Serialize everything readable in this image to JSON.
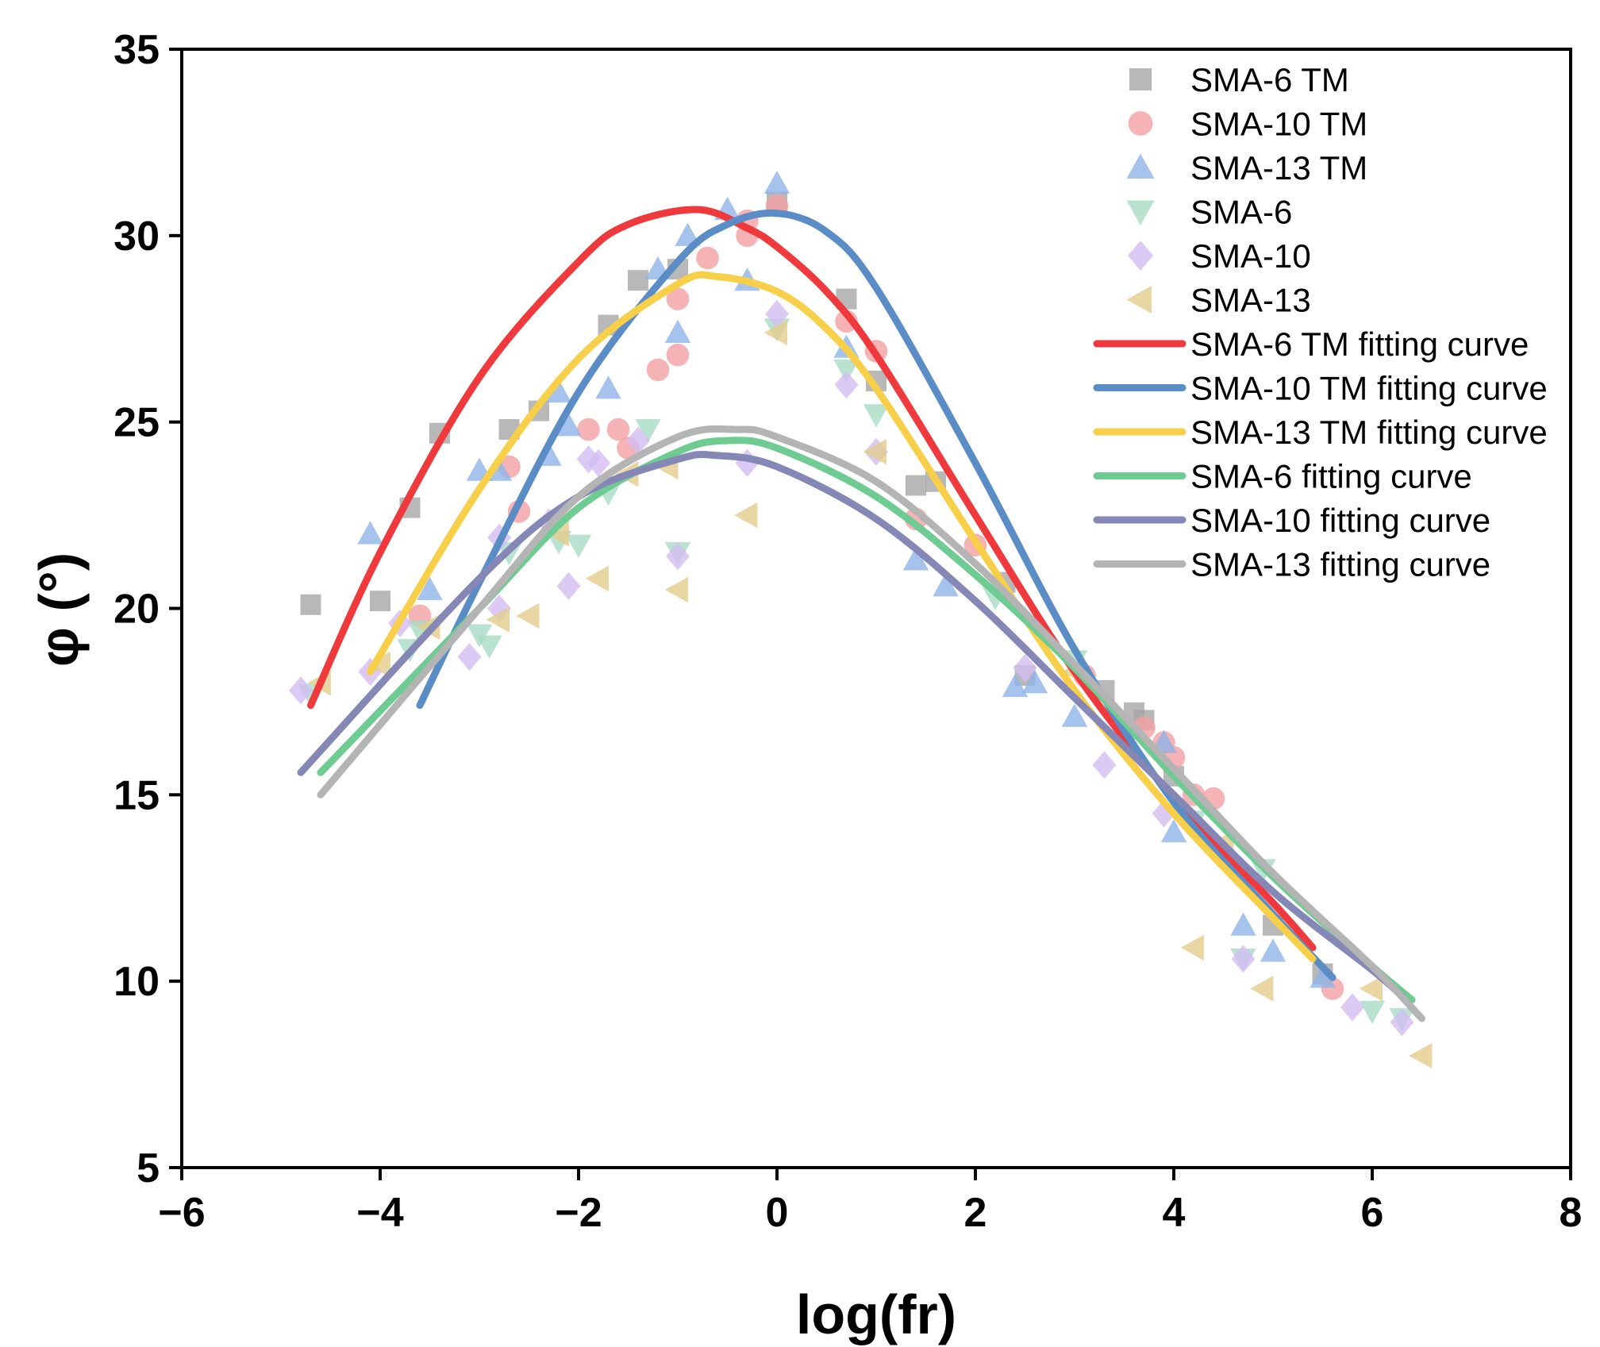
{
  "chart_data": {
    "type": "scatter",
    "title": "",
    "xlabel": "log(fr)",
    "ylabel": "φ (°)",
    "xlim": [
      -6,
      8
    ],
    "ylim": [
      5,
      35
    ],
    "xticks": [
      -6,
      -4,
      -2,
      0,
      2,
      4,
      6,
      8
    ],
    "yticks": [
      5,
      10,
      15,
      20,
      25,
      30,
      35
    ],
    "xtick_labels": [
      "−6",
      "−4",
      "−2",
      "0",
      "2",
      "4",
      "6",
      "8"
    ],
    "ytick_labels": [
      "5",
      "10",
      "15",
      "20",
      "25",
      "30",
      "35"
    ],
    "grid": false,
    "legend_position": "top-right",
    "series": [
      {
        "name": "SMA-6 TM",
        "marker": "square",
        "color": "#a6a6a6",
        "points": [
          [
            -4.7,
            20.1
          ],
          [
            -4.0,
            20.2
          ],
          [
            -3.7,
            22.7
          ],
          [
            -3.4,
            24.7
          ],
          [
            -2.7,
            24.8
          ],
          [
            -2.4,
            25.3
          ],
          [
            -1.7,
            27.6
          ],
          [
            -1.4,
            28.8
          ],
          [
            -1.0,
            29.1
          ],
          [
            0.0,
            30.9
          ],
          [
            0.7,
            28.3
          ],
          [
            1.0,
            26.1
          ],
          [
            1.4,
            23.3
          ],
          [
            1.6,
            23.4
          ],
          [
            2.3,
            20.7
          ],
          [
            2.5,
            18.2
          ],
          [
            3.3,
            17.8
          ],
          [
            3.6,
            17.2
          ],
          [
            3.7,
            17.0
          ],
          [
            4.0,
            15.5
          ],
          [
            5.0,
            11.5
          ],
          [
            5.5,
            10.2
          ]
        ]
      },
      {
        "name": "SMA-10 TM",
        "marker": "circle",
        "color": "#f4a0a4",
        "points": [
          [
            -3.6,
            19.8
          ],
          [
            -2.7,
            23.8
          ],
          [
            -2.6,
            22.6
          ],
          [
            -1.9,
            24.8
          ],
          [
            -1.6,
            24.8
          ],
          [
            -1.5,
            24.3
          ],
          [
            -1.2,
            26.4
          ],
          [
            -1.0,
            26.8
          ],
          [
            -1.0,
            28.3
          ],
          [
            -0.7,
            29.4
          ],
          [
            -0.3,
            30.0
          ],
          [
            -0.3,
            30.4
          ],
          [
            0.0,
            30.8
          ],
          [
            0.7,
            27.7
          ],
          [
            1.0,
            26.9
          ],
          [
            1.4,
            22.4
          ],
          [
            2.0,
            21.7
          ],
          [
            3.1,
            18.2
          ],
          [
            3.7,
            16.8
          ],
          [
            3.9,
            16.4
          ],
          [
            4.0,
            16.0
          ],
          [
            4.2,
            15.0
          ],
          [
            4.4,
            14.9
          ],
          [
            5.6,
            9.8
          ]
        ]
      },
      {
        "name": "SMA-13 TM",
        "marker": "triangle-up",
        "color": "#8fb4e8",
        "points": [
          [
            -4.1,
            22.0
          ],
          [
            -3.5,
            20.5
          ],
          [
            -3.0,
            23.7
          ],
          [
            -2.8,
            23.7
          ],
          [
            -2.3,
            24.1
          ],
          [
            -2.2,
            25.8
          ],
          [
            -2.1,
            24.9
          ],
          [
            -1.7,
            25.9
          ],
          [
            -1.2,
            29.1
          ],
          [
            -1.0,
            27.4
          ],
          [
            -0.9,
            30.0
          ],
          [
            -0.5,
            30.7
          ],
          [
            -0.3,
            28.8
          ],
          [
            0.0,
            31.4
          ],
          [
            0.7,
            27.0
          ],
          [
            1.4,
            21.3
          ],
          [
            1.7,
            20.6
          ],
          [
            2.4,
            17.9
          ],
          [
            2.6,
            18.0
          ],
          [
            3.0,
            17.1
          ],
          [
            3.9,
            16.4
          ],
          [
            4.0,
            14.0
          ],
          [
            4.7,
            11.5
          ],
          [
            5.0,
            10.8
          ],
          [
            5.5,
            10.1
          ]
        ]
      },
      {
        "name": "SMA-6",
        "marker": "triangle-down",
        "color": "#a8dcc4",
        "points": [
          [
            -4.7,
            17.7
          ],
          [
            -3.7,
            18.9
          ],
          [
            -3.6,
            19.4
          ],
          [
            -3.0,
            19.3
          ],
          [
            -2.9,
            19.0
          ],
          [
            -2.7,
            21.5
          ],
          [
            -2.2,
            21.8
          ],
          [
            -2.0,
            21.7
          ],
          [
            -1.7,
            23.1
          ],
          [
            -1.3,
            24.8
          ],
          [
            -1.0,
            21.5
          ],
          [
            0.0,
            27.5
          ],
          [
            0.7,
            26.4
          ],
          [
            1.0,
            25.2
          ],
          [
            2.2,
            20.3
          ],
          [
            3.0,
            18.6
          ],
          [
            3.5,
            16.3
          ],
          [
            4.2,
            14.3
          ],
          [
            4.7,
            10.6
          ],
          [
            4.9,
            13.0
          ],
          [
            6.0,
            9.2
          ],
          [
            6.3,
            9.0
          ]
        ]
      },
      {
        "name": "SMA-10",
        "marker": "diamond",
        "color": "#d3bdf3",
        "points": [
          [
            -4.8,
            17.8
          ],
          [
            -4.1,
            18.3
          ],
          [
            -3.8,
            19.6
          ],
          [
            -3.1,
            18.7
          ],
          [
            -2.8,
            21.9
          ],
          [
            -2.8,
            20.0
          ],
          [
            -2.3,
            22.3
          ],
          [
            -2.1,
            20.6
          ],
          [
            -1.9,
            24.0
          ],
          [
            -1.8,
            23.9
          ],
          [
            -1.4,
            24.5
          ],
          [
            -1.0,
            21.4
          ],
          [
            -0.3,
            23.9
          ],
          [
            0.0,
            27.9
          ],
          [
            0.7,
            26.0
          ],
          [
            1.0,
            24.2
          ],
          [
            2.5,
            18.4
          ],
          [
            3.3,
            15.8
          ],
          [
            3.9,
            14.5
          ],
          [
            4.7,
            10.6
          ],
          [
            5.8,
            9.3
          ],
          [
            6.3,
            8.9
          ]
        ]
      },
      {
        "name": "SMA-13",
        "marker": "triangle-left",
        "color": "#e4cc8c",
        "points": [
          [
            -4.6,
            18.0
          ],
          [
            -4.0,
            18.5
          ],
          [
            -3.5,
            19.5
          ],
          [
            -2.8,
            19.7
          ],
          [
            -2.5,
            19.8
          ],
          [
            -2.2,
            22.0
          ],
          [
            -1.8,
            20.8
          ],
          [
            -1.5,
            23.6
          ],
          [
            -1.1,
            23.8
          ],
          [
            -1.0,
            20.5
          ],
          [
            -0.3,
            22.5
          ],
          [
            0.0,
            27.4
          ],
          [
            1.0,
            24.2
          ],
          [
            3.0,
            18.3
          ],
          [
            4.2,
            10.9
          ],
          [
            4.5,
            13.7
          ],
          [
            4.9,
            9.8
          ],
          [
            6.0,
            9.8
          ],
          [
            6.5,
            8.0
          ]
        ]
      }
    ],
    "fit_curves": [
      {
        "name": "SMA-6 TM fitting curve",
        "color": "#f0393c",
        "x": [
          -4.7,
          -4.0,
          -3.0,
          -2.0,
          -1.5,
          -0.8,
          -0.3,
          0.0,
          0.5,
          1.0,
          2.0,
          3.0,
          4.0,
          5.0,
          5.4
        ],
        "y": [
          17.4,
          21.5,
          26.2,
          29.3,
          30.3,
          30.7,
          30.2,
          29.7,
          28.5,
          26.8,
          22.5,
          18.3,
          14.9,
          12.1,
          10.9
        ]
      },
      {
        "name": "SMA-10 TM fitting curve",
        "color": "#5a8dc6",
        "x": [
          -3.6,
          -3.0,
          -2.0,
          -1.0,
          -0.5,
          0.0,
          0.5,
          1.0,
          2.0,
          3.0,
          4.0,
          5.0,
          5.6
        ],
        "y": [
          17.4,
          20.7,
          25.8,
          29.3,
          30.3,
          30.6,
          30.1,
          28.6,
          23.9,
          18.9,
          14.8,
          11.8,
          10.1
        ]
      },
      {
        "name": "SMA-13 TM fitting curve",
        "color": "#f7cf49",
        "x": [
          -4.1,
          -3.0,
          -2.0,
          -1.0,
          -0.6,
          0.0,
          0.5,
          1.0,
          2.0,
          3.0,
          4.0,
          5.0,
          5.4
        ],
        "y": [
          18.3,
          23.2,
          26.7,
          28.7,
          28.9,
          28.5,
          27.5,
          25.9,
          21.8,
          17.8,
          14.5,
          11.7,
          10.6
        ]
      },
      {
        "name": "SMA-6 fitting curve",
        "color": "#6ecb91",
        "x": [
          -4.6,
          -3.0,
          -2.0,
          -1.0,
          -0.5,
          0.0,
          1.0,
          2.0,
          3.0,
          4.0,
          5.0,
          6.0,
          6.4
        ],
        "y": [
          15.6,
          20.0,
          22.7,
          24.2,
          24.5,
          24.3,
          23.0,
          20.9,
          18.4,
          15.5,
          12.8,
          10.4,
          9.5
        ]
      },
      {
        "name": "SMA-10 fitting curve",
        "color": "#8588b6",
        "x": [
          -4.8,
          -3.0,
          -2.0,
          -1.0,
          -0.6,
          0.0,
          1.0,
          2.0,
          3.0,
          4.0,
          5.0,
          6.0,
          6.3
        ],
        "y": [
          15.6,
          20.8,
          23.0,
          24.0,
          24.1,
          23.8,
          22.4,
          20.2,
          17.6,
          15.0,
          12.4,
          10.3,
          9.6
        ]
      },
      {
        "name": "SMA-13 fitting curve",
        "color": "#b4b4b4",
        "x": [
          -4.6,
          -3.0,
          -2.0,
          -1.0,
          -0.4,
          0.0,
          1.0,
          2.0,
          3.0,
          4.0,
          5.0,
          6.0,
          6.5
        ],
        "y": [
          15.0,
          20.0,
          23.0,
          24.6,
          24.8,
          24.6,
          23.4,
          21.2,
          18.5,
          15.7,
          12.9,
          10.4,
          9.0
        ]
      }
    ]
  }
}
